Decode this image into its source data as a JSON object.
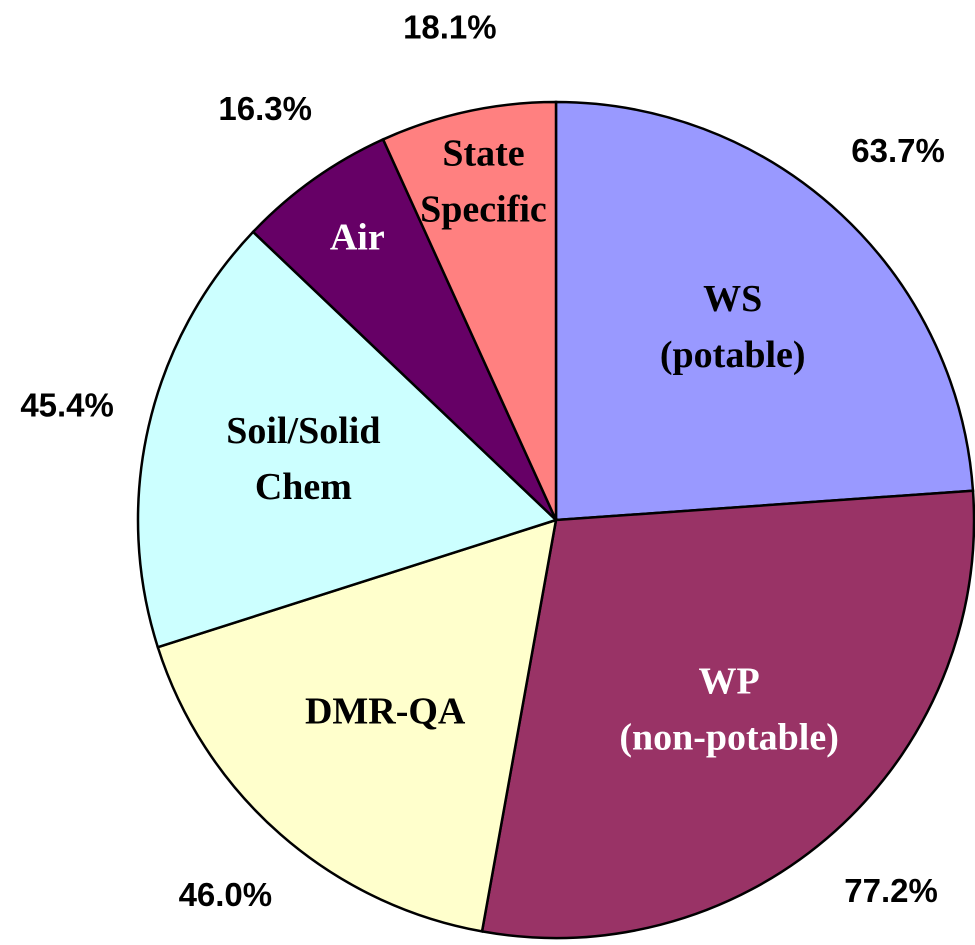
{
  "chart_data": {
    "type": "pie",
    "categories": [
      [
        "WS",
        "(potable)"
      ],
      [
        "WP",
        "(non-potable)"
      ],
      [
        "DMR-QA"
      ],
      [
        "Soil/Solid",
        "Chem"
      ],
      [
        "Air"
      ],
      [
        "State",
        "Specific"
      ]
    ],
    "values": [
      63.7,
      77.2,
      46.0,
      45.4,
      16.3,
      18.1
    ],
    "value_labels": [
      "63.7%",
      "77.2%",
      "46.0%",
      "45.4%",
      "16.3%",
      "18.1%"
    ],
    "colors": [
      "#9999ff",
      "#993366",
      "#ffffcc",
      "#ccffff",
      "#660066",
      "#ff8080"
    ],
    "label_colors": [
      "#000000",
      "#ffffff",
      "#000000",
      "#000000",
      "#ffffff",
      "#000000"
    ]
  }
}
